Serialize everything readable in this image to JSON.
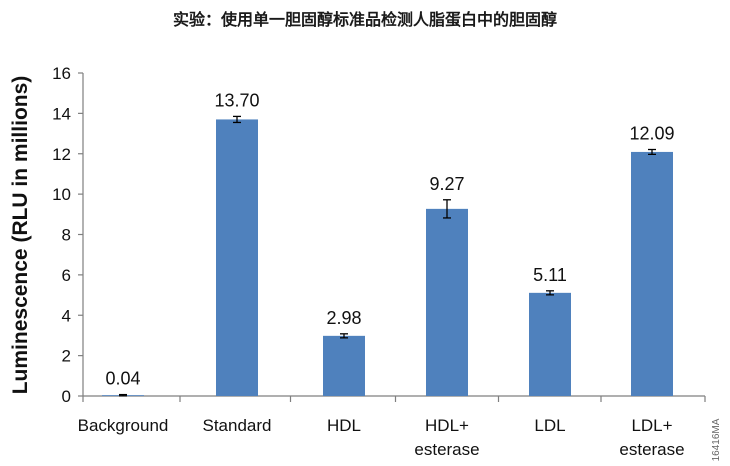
{
  "chart_data": {
    "type": "bar",
    "title": "实验：使用单一胆固醇标准品检测人脂蛋白中的胆固醇",
    "xlabel": "",
    "ylabel": "Luminescence (RLU in millions)",
    "ylim": [
      0,
      16
    ],
    "yticks": [
      "0",
      "2",
      "4",
      "6",
      "8",
      "10",
      "12",
      "14",
      "16"
    ],
    "grid": false,
    "categories": [
      [
        "Background"
      ],
      [
        "Standard"
      ],
      [
        "HDL"
      ],
      [
        "HDL+",
        "esterase"
      ],
      [
        "LDL"
      ],
      [
        "LDL+",
        "esterase"
      ]
    ],
    "values": [
      0.04,
      13.7,
      2.98,
      9.27,
      5.11,
      12.09
    ],
    "value_labels": [
      "0.04",
      "13.70",
      "2.98",
      "9.27",
      "5.11",
      "12.09"
    ],
    "error": [
      0.03,
      0.15,
      0.1,
      0.45,
      0.1,
      0.12
    ],
    "bar_color": "#4f81bd",
    "side_mark": "16416MA"
  }
}
